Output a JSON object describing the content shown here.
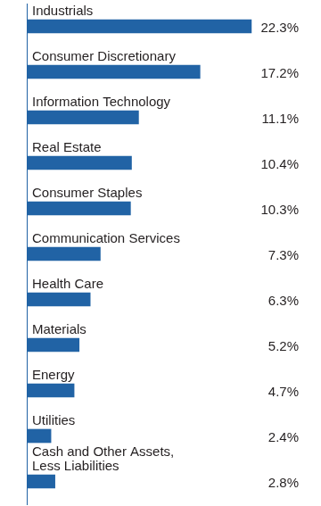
{
  "chart_data": {
    "type": "bar",
    "orientation": "horizontal",
    "categories": [
      "Industrials",
      "Consumer Discretionary",
      "Information Technology",
      "Real Estate",
      "Consumer Staples",
      "Communication Services",
      "Health Care",
      "Materials",
      "Energy",
      "Utilities",
      [
        "Cash and Other Assets,",
        "Less Liabilities"
      ]
    ],
    "values": [
      22.3,
      17.2,
      11.1,
      10.4,
      10.3,
      7.3,
      6.3,
      5.2,
      4.7,
      2.4,
      2.8
    ],
    "value_labels": [
      "22.3%",
      "17.2%",
      "11.1%",
      "10.4%",
      "10.3%",
      "7.3%",
      "6.3%",
      "5.2%",
      "4.7%",
      "2.4%",
      "2.8%"
    ],
    "color": "#2163a5",
    "xlim": [
      0,
      27
    ],
    "grid": false,
    "data_labels": true,
    "tick_labels": false
  }
}
